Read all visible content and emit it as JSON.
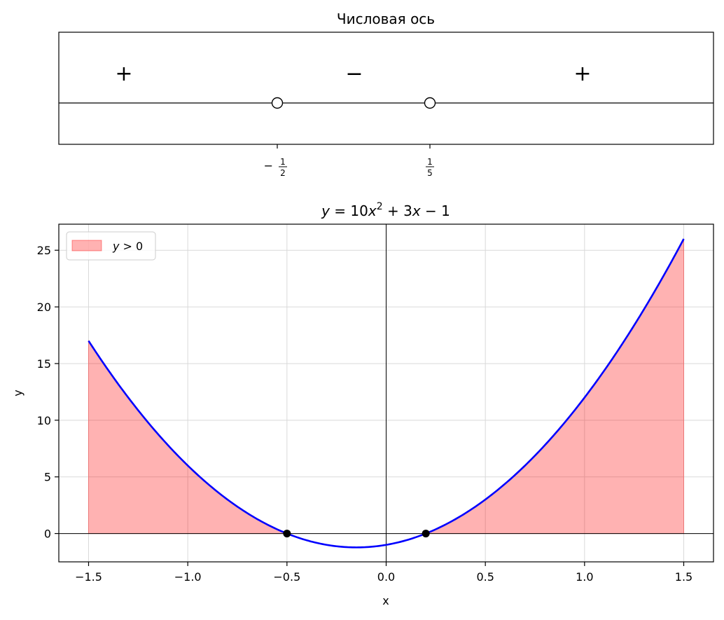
{
  "charts": [
    {
      "type": "number-line",
      "title": "Числовая ось",
      "roots": [
        {
          "x": -0.5,
          "label_sign": "−",
          "label_num": "1",
          "label_den": "2",
          "marker": "open"
        },
        {
          "x": 0.2,
          "label_sign": "",
          "label_num": "1",
          "label_den": "5",
          "marker": "open"
        }
      ],
      "signs": [
        {
          "interval": "x < -1/2",
          "symbol": "+",
          "color": "#ff0000"
        },
        {
          "interval": "-1/2 < x < 1/5",
          "symbol": "−",
          "color": "#0000ff"
        },
        {
          "interval": "x > 1/5",
          "symbol": "+",
          "color": "#ff0000"
        }
      ]
    }
  ],
  "chart_data": {
    "type": "line",
    "title": "y = 10x² + 3x − 1",
    "title_parts": {
      "y": "y",
      "eq": " = 10",
      "x": "x",
      "sup": "2",
      "plus": " + 3",
      "x2": "x",
      "rest": " − 1"
    },
    "function": {
      "a": 10,
      "b": 3,
      "c": -1
    },
    "xlabel": "x",
    "ylabel": "y",
    "xlim": [
      -1.65,
      1.65
    ],
    "ylim": [
      -2.5,
      27.3
    ],
    "x_range": [
      -1.5,
      1.5
    ],
    "xticks": [
      -1.5,
      -1.0,
      -0.5,
      0.0,
      0.5,
      1.0,
      1.5
    ],
    "xtick_labels": [
      "−1.5",
      "−1.0",
      "−0.5",
      "0.0",
      "0.5",
      "1.0",
      "1.5"
    ],
    "yticks": [
      0,
      5,
      10,
      15,
      20,
      25
    ],
    "ytick_labels": [
      "0",
      "5",
      "10",
      "15",
      "20",
      "25"
    ],
    "grid": true,
    "legend": {
      "placement": "top-left",
      "label_var": "y",
      "label_rest": " > 0"
    },
    "series": [
      {
        "kind": "curve",
        "color": "#0000ff"
      },
      {
        "kind": "fill",
        "condition": "y > 0",
        "color": "#ff0000",
        "opacity": 0.3
      }
    ],
    "points": [
      {
        "x": -0.5,
        "y": 0
      },
      {
        "x": 0.2,
        "y": 0
      }
    ]
  },
  "colors": {
    "curve": "#0000ff",
    "fill": "#ff0000",
    "axis": "#000000",
    "grid": "#d9d9d9"
  }
}
